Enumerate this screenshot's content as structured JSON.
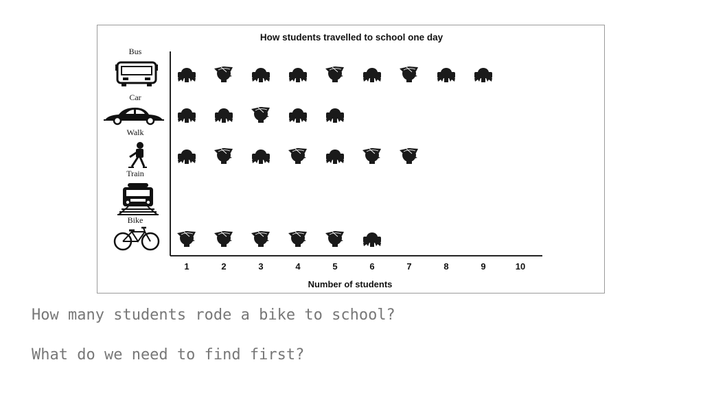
{
  "chart_data": {
    "type": "pictogram",
    "title": "How students travelled to school one day",
    "xlabel": "Number of students",
    "ylabel": "",
    "x_ticks": [
      "1",
      "2",
      "3",
      "4",
      "5",
      "6",
      "7",
      "8",
      "9",
      "10"
    ],
    "categories": [
      "Bus",
      "Car",
      "Walk",
      "Train",
      "Bike"
    ],
    "category_icons": [
      "bus-icon",
      "car-icon",
      "walking-student-icon",
      "train-icon",
      "bicycle-icon"
    ],
    "values": [
      9,
      5,
      7,
      0,
      6
    ],
    "xlim": [
      0,
      10
    ],
    "grid": false,
    "symbol_colors": {
      "ink": "#1a1a1a"
    },
    "symbols": {
      "Bus": [
        "girl",
        "boy",
        "girl",
        "girl",
        "boy",
        "girl",
        "boy",
        "girl",
        "girl"
      ],
      "Car": [
        "girl",
        "girl",
        "boy",
        "girl",
        "girl"
      ],
      "Walk": [
        "girl",
        "boy",
        "girl",
        "boy",
        "girl",
        "boy",
        "boy"
      ],
      "Train": [],
      "Bike": [
        "boy",
        "boy",
        "boy",
        "boy",
        "boy",
        "girl"
      ]
    }
  },
  "questions": {
    "q1": "How many students rode a bike to school?",
    "q2": "What do we need to find first?"
  }
}
